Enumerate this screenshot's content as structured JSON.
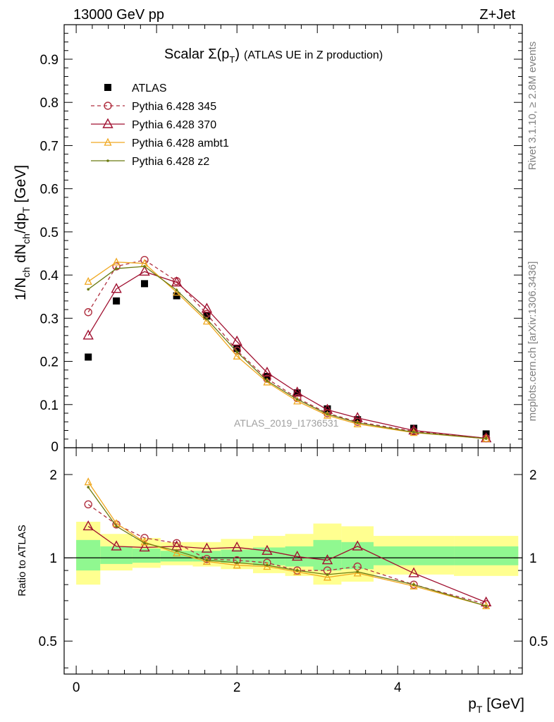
{
  "header": {
    "left": "13000 GeV pp",
    "right": "Z+Jet"
  },
  "side_labels": {
    "rivet": "Rivet 3.1.10, ≥ 2.8M events",
    "mcplots": "mcplots.cern.ch [arXiv:1306.3436]"
  },
  "watermark": "ATLAS_2019_I1736531",
  "colors": {
    "atlas": "#000000",
    "p345": "#b03040",
    "p370": "#a01030",
    "ambt1": "#f0a820",
    "z2": "#6b7a10",
    "band_inner": "#90f890",
    "band_outer": "#ffff90"
  },
  "chart_data": [
    {
      "type": "line",
      "title_main": "Scalar Σ(p",
      "title_sub": "T",
      "title_end": ")",
      "title_suffix": "(ATLAS UE in Z production)",
      "ylabel": "1/N_ch dN_ch/dp_T [GeV]",
      "xlim": [
        -0.15,
        5.55
      ],
      "ylim": [
        0,
        0.98
      ],
      "yticks": [
        "0.1",
        "0.2",
        "0.3",
        "0.4",
        "0.5",
        "0.6",
        "0.7",
        "0.8",
        "0.9"
      ],
      "ytick_zero": "0",
      "legend_position": "top-left",
      "x": [
        0.15,
        0.5,
        0.85,
        1.25,
        1.625,
        2.0,
        2.375,
        2.75,
        3.125,
        3.5,
        4.2,
        5.1
      ],
      "series": [
        {
          "name": "ATLAS",
          "key": "atlas",
          "marker": "square",
          "line": "none",
          "values": [
            0.21,
            0.34,
            0.38,
            0.352,
            0.305,
            0.23,
            0.165,
            0.127,
            0.09,
            0.065,
            0.045,
            0.032
          ]
        },
        {
          "name": "Pythia 6.428 345",
          "key": "p345",
          "marker": "circle",
          "line": "dashed",
          "values": [
            0.314,
            0.42,
            0.435,
            0.386,
            0.31,
            0.225,
            0.16,
            0.115,
            0.08,
            0.06,
            0.038,
            0.022
          ]
        },
        {
          "name": "Pythia 6.428 370",
          "key": "p370",
          "marker": "triangle",
          "line": "solid",
          "values": [
            0.26,
            0.368,
            0.408,
            0.383,
            0.322,
            0.246,
            0.174,
            0.128,
            0.088,
            0.069,
            0.04,
            0.022
          ]
        },
        {
          "name": "Pythia 6.428 ambt1",
          "key": "ambt1",
          "marker": "small-triangle",
          "line": "solid",
          "values": [
            0.385,
            0.43,
            0.427,
            0.36,
            0.293,
            0.212,
            0.152,
            0.108,
            0.075,
            0.055,
            0.035,
            0.021
          ]
        },
        {
          "name": "Pythia 6.428 z2",
          "key": "z2",
          "marker": "dot",
          "line": "solid",
          "values": [
            0.367,
            0.415,
            0.42,
            0.365,
            0.298,
            0.222,
            0.155,
            0.112,
            0.078,
            0.058,
            0.036,
            0.021
          ]
        }
      ]
    },
    {
      "type": "line",
      "ylabel": "Ratio to ATLAS",
      "xlabel": "p_T [GeV]",
      "xlim": [
        -0.15,
        5.55
      ],
      "ylim": [
        0.38,
        2.5
      ],
      "log_y": true,
      "yticks": [
        "0.5",
        "1",
        "2"
      ],
      "xticks": [
        "0",
        "2",
        "4"
      ],
      "bins": [
        {
          "lo": 0.0,
          "hi": 0.3,
          "outer": [
            0.8,
            1.35
          ],
          "inner": [
            0.9,
            1.16
          ]
        },
        {
          "lo": 0.3,
          "hi": 0.7,
          "outer": [
            0.9,
            1.22
          ],
          "inner": [
            0.95,
            1.1
          ]
        },
        {
          "lo": 0.7,
          "hi": 1.05,
          "outer": [
            0.92,
            1.18
          ],
          "inner": [
            0.96,
            1.08
          ]
        },
        {
          "lo": 1.05,
          "hi": 1.45,
          "outer": [
            0.94,
            1.14
          ],
          "inner": [
            0.97,
            1.06
          ]
        },
        {
          "lo": 1.45,
          "hi": 1.8,
          "outer": [
            0.93,
            1.14
          ],
          "inner": [
            0.97,
            1.06
          ]
        },
        {
          "lo": 1.8,
          "hi": 2.2,
          "outer": [
            0.91,
            1.17
          ],
          "inner": [
            0.96,
            1.07
          ]
        },
        {
          "lo": 2.2,
          "hi": 2.6,
          "outer": [
            0.88,
            1.2
          ],
          "inner": [
            0.94,
            1.09
          ]
        },
        {
          "lo": 2.6,
          "hi": 2.95,
          "outer": [
            0.86,
            1.22
          ],
          "inner": [
            0.93,
            1.1
          ]
        },
        {
          "lo": 2.95,
          "hi": 3.3,
          "outer": [
            0.8,
            1.33
          ],
          "inner": [
            0.9,
            1.16
          ]
        },
        {
          "lo": 3.3,
          "hi": 3.7,
          "outer": [
            0.82,
            1.3
          ],
          "inner": [
            0.91,
            1.14
          ]
        },
        {
          "lo": 3.7,
          "hi": 4.7,
          "outer": [
            0.87,
            1.2
          ],
          "inner": [
            0.94,
            1.1
          ]
        },
        {
          "lo": 4.7,
          "hi": 5.5,
          "outer": [
            0.86,
            1.2
          ],
          "inner": [
            0.94,
            1.1
          ]
        }
      ],
      "x": [
        0.15,
        0.5,
        0.85,
        1.25,
        1.625,
        2.0,
        2.375,
        2.75,
        3.125,
        3.5,
        4.2,
        5.1
      ],
      "series": [
        {
          "key": "p345",
          "marker": "circle",
          "line": "dashed",
          "values": [
            1.56,
            1.32,
            1.18,
            1.13,
            0.99,
            0.98,
            0.96,
            0.9,
            0.9,
            0.93,
            0.8,
            0.68
          ]
        },
        {
          "key": "p370",
          "marker": "triangle",
          "line": "solid",
          "values": [
            1.3,
            1.1,
            1.09,
            1.1,
            1.08,
            1.09,
            1.06,
            1.01,
            0.98,
            1.1,
            0.88,
            0.69
          ]
        },
        {
          "key": "ambt1",
          "marker": "small-triangle",
          "line": "solid",
          "values": [
            1.88,
            1.33,
            1.14,
            1.04,
            0.97,
            0.94,
            0.93,
            0.89,
            0.85,
            0.88,
            0.79,
            0.67
          ]
        },
        {
          "key": "z2",
          "marker": "dot",
          "line": "solid",
          "values": [
            1.8,
            1.3,
            1.13,
            1.06,
            0.98,
            0.96,
            0.94,
            0.9,
            0.87,
            0.89,
            0.8,
            0.67
          ]
        }
      ]
    }
  ]
}
